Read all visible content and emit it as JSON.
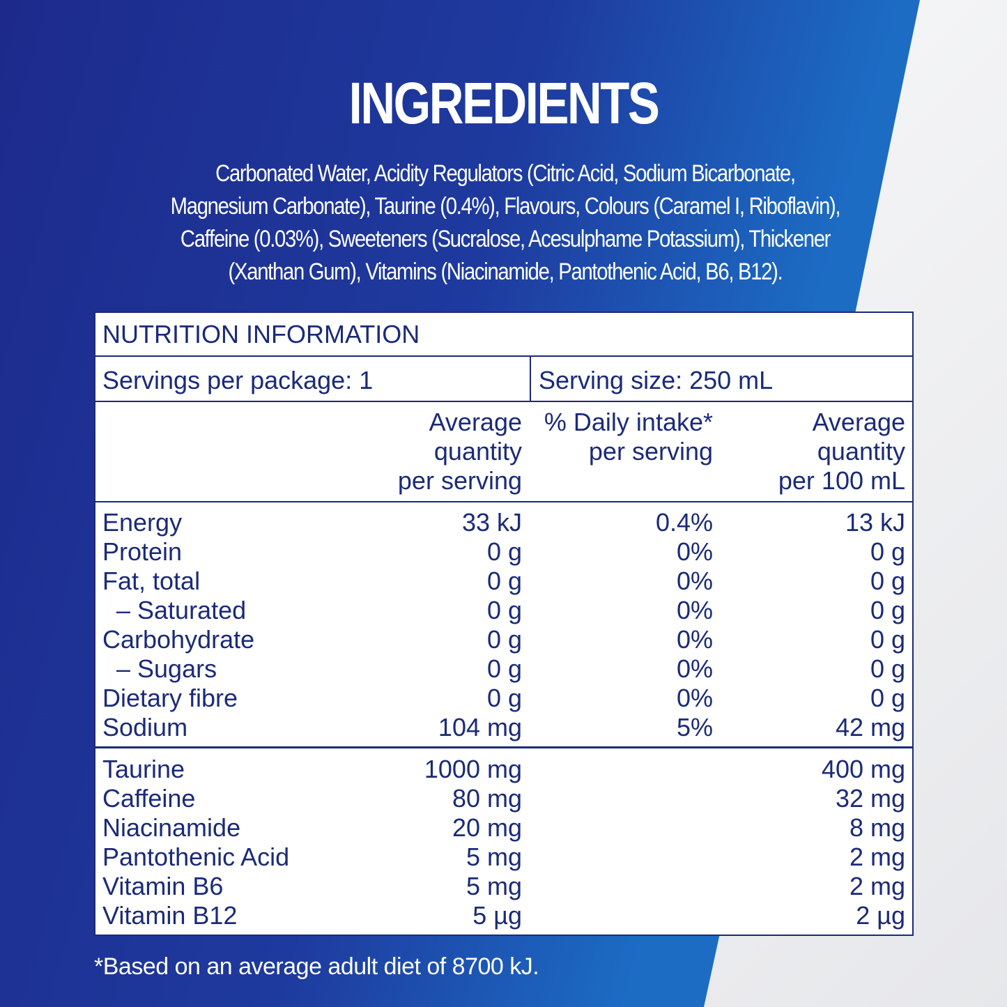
{
  "title": "INGREDIENTS",
  "ingredients": [
    "Carbonated Water, Acidity Regulators (Citric Acid, Sodium Bicarbonate,",
    "Magnesium Carbonate), Taurine (0.4%), Flavours, Colours (Caramel I, Riboflavin),",
    "Caffeine (0.03%), Sweeteners (Sucralose, Acesulphame Potassium), Thickener",
    "(Xanthan Gum), Vitamins (Niacinamide, Pantothenic Acid, B6, B12)."
  ],
  "nutrition": {
    "title": "NUTRITION INFORMATION",
    "servings_per_package": "Servings per package: 1",
    "serving_size": "Serving size: 250 mL",
    "columns": [
      [
        "Average",
        "quantity",
        "per serving"
      ],
      [
        "% Daily intake*",
        "per serving"
      ],
      [
        "Average",
        "quantity",
        "per 100 mL"
      ]
    ],
    "groups": [
      [
        [
          "Energy",
          "33 kJ",
          "0.4%",
          "13 kJ"
        ],
        [
          "Protein",
          "0 g",
          "0%",
          "0 g"
        ],
        [
          "Fat, total",
          "0 g",
          "0%",
          "0 g"
        ],
        [
          "– Saturated",
          "0 g",
          "0%",
          "0 g"
        ],
        [
          "Carbohydrate",
          "0 g",
          "0%",
          "0 g"
        ],
        [
          "– Sugars",
          "0 g",
          "0%",
          "0 g"
        ],
        [
          "Dietary fibre",
          "0 g",
          "0%",
          "0 g"
        ],
        [
          "Sodium",
          "104 mg",
          "5%",
          "42 mg"
        ]
      ],
      [
        [
          "Taurine",
          "1000 mg",
          null,
          "400 mg"
        ],
        [
          "Caffeine",
          "80 mg",
          null,
          "32 mg"
        ],
        [
          "Niacinamide",
          "20 mg",
          null,
          "8 mg"
        ],
        [
          "Pantothenic Acid",
          "5 mg",
          null,
          "2 mg"
        ],
        [
          "Vitamin B6",
          "5 mg",
          null,
          "2 mg"
        ],
        [
          "Vitamin B12",
          "5 µg",
          null,
          "2 µg"
        ]
      ]
    ]
  },
  "footnote": "*Based on an average adult diet of 8700 kJ."
}
